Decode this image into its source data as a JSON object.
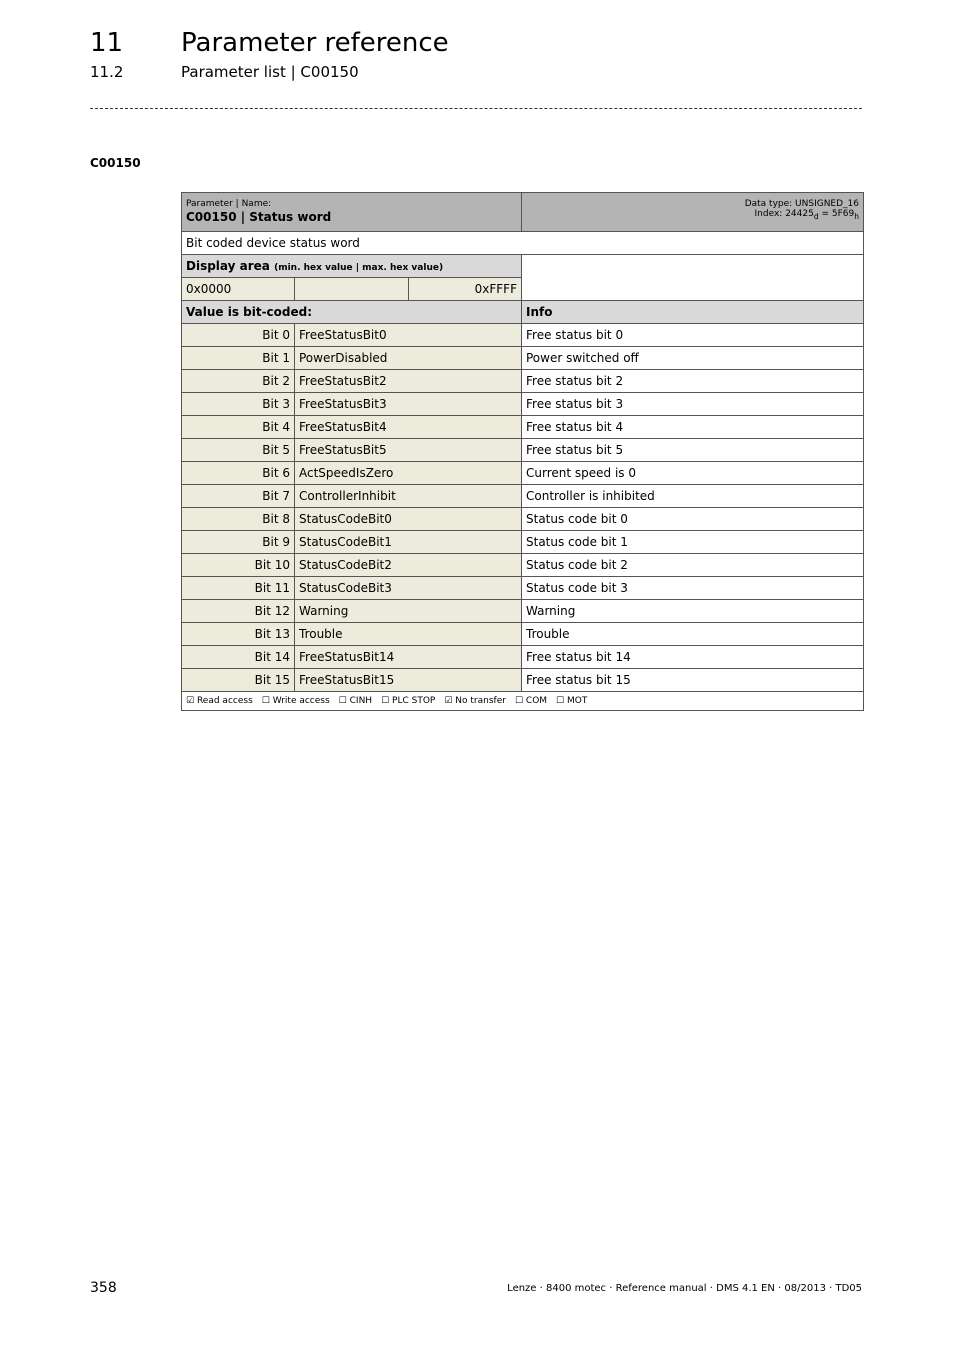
{
  "header": {
    "chapter_num": "11",
    "chapter_title": "Parameter reference",
    "section_num": "11.2",
    "section_title": "Parameter list | C00150"
  },
  "code_heading": "C00150",
  "param": {
    "label": "Parameter | Name:",
    "name": "C00150 | Status word",
    "data_type": "Data type: UNSIGNED_16",
    "index_prefix": "Index: 24425",
    "index_d": "d",
    "index_mid": " = 5F69",
    "index_h": "h",
    "description": "Bit coded device status word"
  },
  "display": {
    "label": "Display area",
    "sublabel": "(min. hex value | max. hex value)",
    "min": "0x0000",
    "max": "0xFFFF"
  },
  "bits_header": {
    "left": "Value is bit-coded:",
    "right": "Info"
  },
  "bits": [
    {
      "bit": "Bit 0",
      "name": "FreeStatusBit0",
      "info": "Free status bit 0"
    },
    {
      "bit": "Bit 1",
      "name": "PowerDisabled",
      "info": "Power switched off"
    },
    {
      "bit": "Bit 2",
      "name": "FreeStatusBit2",
      "info": "Free status bit 2"
    },
    {
      "bit": "Bit 3",
      "name": "FreeStatusBit3",
      "info": "Free status bit 3"
    },
    {
      "bit": "Bit 4",
      "name": "FreeStatusBit4",
      "info": "Free status bit 4"
    },
    {
      "bit": "Bit 5",
      "name": "FreeStatusBit5",
      "info": "Free status bit 5"
    },
    {
      "bit": "Bit 6",
      "name": "ActSpeedIsZero",
      "info": "Current speed is 0"
    },
    {
      "bit": "Bit 7",
      "name": "ControllerInhibit",
      "info": "Controller is inhibited"
    },
    {
      "bit": "Bit 8",
      "name": "StatusCodeBit0",
      "info": "Status code bit 0"
    },
    {
      "bit": "Bit 9",
      "name": "StatusCodeBit1",
      "info": "Status code bit 1"
    },
    {
      "bit": "Bit 10",
      "name": "StatusCodeBit2",
      "info": "Status code bit 2"
    },
    {
      "bit": "Bit 11",
      "name": "StatusCodeBit3",
      "info": "Status code bit 3"
    },
    {
      "bit": "Bit 12",
      "name": "Warning",
      "info": "Warning"
    },
    {
      "bit": "Bit 13",
      "name": "Trouble",
      "info": "Trouble"
    },
    {
      "bit": "Bit 14",
      "name": "FreeStatusBit14",
      "info": "Free status bit 14"
    },
    {
      "bit": "Bit 15",
      "name": "FreeStatusBit15",
      "info": "Free status bit 15"
    }
  ],
  "access": [
    {
      "label": "Read access",
      "checked": true
    },
    {
      "label": "Write access",
      "checked": false
    },
    {
      "label": "CINH",
      "checked": false
    },
    {
      "label": "PLC STOP",
      "checked": false
    },
    {
      "label": "No transfer",
      "checked": true
    },
    {
      "label": "COM",
      "checked": false
    },
    {
      "label": "MOT",
      "checked": false
    }
  ],
  "footer": {
    "page": "358",
    "doc": "Lenze · 8400 motec · Reference manual · DMS 4.1 EN · 08/2013 · TD05"
  }
}
